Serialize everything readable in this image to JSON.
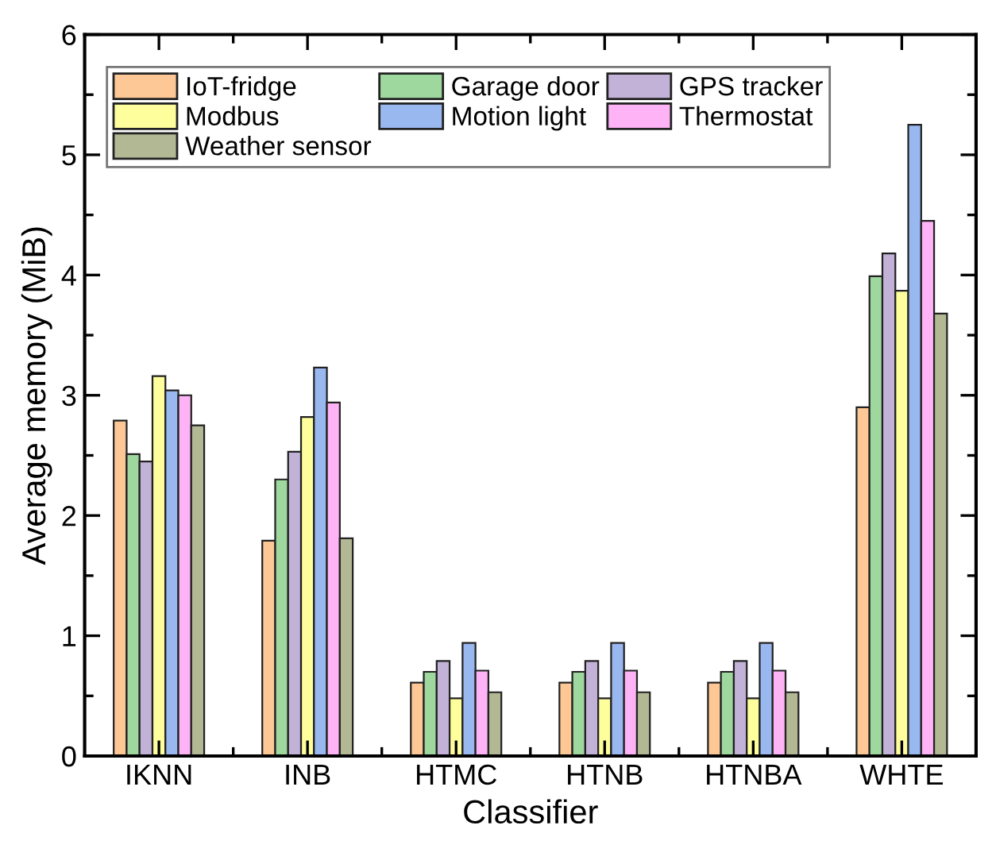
{
  "chart_data": {
    "type": "bar",
    "xlabel": "Classifier",
    "ylabel": "Average memory (MiB)",
    "categories": [
      "IKNN",
      "INB",
      "HTMC",
      "HTNB",
      "HTNBA",
      "WHTE"
    ],
    "series": [
      {
        "name": "IoT-fridge",
        "color": "#fdc896",
        "values": [
          2.79,
          1.79,
          0.61,
          0.61,
          0.61,
          2.9
        ]
      },
      {
        "name": "Garage door",
        "color": "#9fd89f",
        "values": [
          2.51,
          2.3,
          0.7,
          0.7,
          0.7,
          3.99
        ]
      },
      {
        "name": "GPS tracker",
        "color": "#c2b2d8",
        "values": [
          2.45,
          2.53,
          0.79,
          0.79,
          0.79,
          4.18
        ]
      },
      {
        "name": "Modbus",
        "color": "#fefe9c",
        "values": [
          3.16,
          2.82,
          0.48,
          0.48,
          0.48,
          3.87
        ]
      },
      {
        "name": "Motion light",
        "color": "#9ab8f0",
        "values": [
          3.04,
          3.23,
          0.94,
          0.94,
          0.94,
          5.25
        ]
      },
      {
        "name": "Thermostat",
        "color": "#fdb3f5",
        "values": [
          3.0,
          2.94,
          0.71,
          0.71,
          0.71,
          4.45
        ]
      },
      {
        "name": "Weather sensor",
        "color": "#b3b894",
        "values": [
          2.75,
          1.81,
          0.53,
          0.53,
          0.53,
          3.68
        ]
      }
    ],
    "ylim": [
      0,
      6
    ],
    "yticks": [
      0,
      1,
      2,
      3,
      4,
      5,
      6
    ],
    "legend": "top left",
    "grid": false
  }
}
